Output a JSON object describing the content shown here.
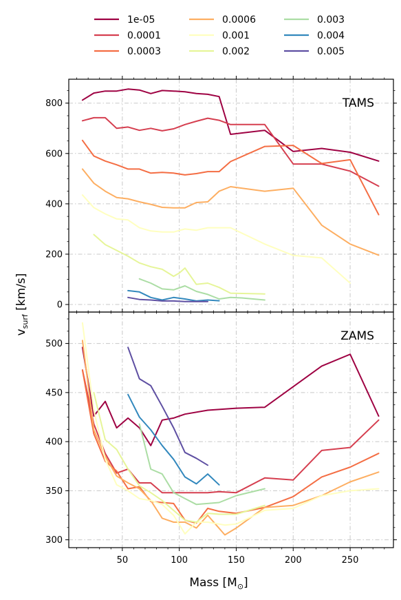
{
  "chart_data": {
    "type": "line",
    "xlabel": "Mass [M",
    "xlabel_sub": "⊙",
    "xlabel_end": "]",
    "ylabel": "v",
    "ylabel_sub": "surf",
    "ylabel_end": " [km/s]",
    "xlim": [
      3,
      288
    ],
    "x_ticks": [
      50,
      100,
      150,
      200,
      250
    ],
    "grid": true,
    "legend_position": "top",
    "series_style": [
      {
        "label": "1e-05",
        "color": "#9e0142"
      },
      {
        "label": "0.0001",
        "color": "#d53e4f"
      },
      {
        "label": "0.0003",
        "color": "#f46d43"
      },
      {
        "label": "0.0006",
        "color": "#fdae61"
      },
      {
        "label": "0.001",
        "color": "#ffffbf"
      },
      {
        "label": "0.002",
        "color": "#e6f598"
      },
      {
        "label": "0.003",
        "color": "#abdda4"
      },
      {
        "label": "0.004",
        "color": "#3288bd"
      },
      {
        "label": "0.005",
        "color": "#5e4fa2"
      }
    ],
    "panels": [
      {
        "label": "TAMS",
        "ylim": [
          -30,
          895
        ],
        "y_ticks": [
          0,
          200,
          400,
          600,
          800
        ],
        "series": [
          {
            "x": [
              15,
              25,
              35,
              45,
              55,
              65,
              75,
              85,
              95,
              105,
              115,
              125,
              135,
              145,
              175,
              200,
              225,
              250,
              275
            ],
            "y": [
              812,
              840,
              848,
              848,
              856,
              852,
              838,
              850,
              848,
              845,
              838,
              835,
              826,
              676,
              692,
              608,
              620,
              605,
              570
            ]
          },
          {
            "x": [
              15,
              25,
              35,
              45,
              55,
              65,
              75,
              85,
              95,
              105,
              115,
              125,
              135,
              145,
              175,
              200,
              225,
              250,
              275
            ],
            "y": [
              730,
              742,
              742,
              700,
              705,
              692,
              700,
              690,
              698,
              715,
              728,
              740,
              732,
              715,
              715,
              558,
              558,
              530,
              470
            ]
          },
          {
            "x": [
              15,
              25,
              35,
              45,
              55,
              65,
              75,
              85,
              95,
              105,
              115,
              125,
              135,
              145,
              175,
              200,
              225,
              250,
              275
            ],
            "y": [
              652,
              590,
              570,
              555,
              538,
              538,
              522,
              525,
              522,
              515,
              520,
              528,
              528,
              568,
              628,
              632,
              560,
              575,
              357
            ]
          },
          {
            "x": [
              15,
              25,
              35,
              45,
              55,
              65,
              75,
              85,
              95,
              105,
              115,
              125,
              135,
              145,
              175,
              200,
              225,
              250,
              275
            ],
            "y": [
              538,
              482,
              450,
              425,
              420,
              408,
              398,
              386,
              384,
              384,
              405,
              408,
              450,
              468,
              450,
              462,
              315,
              240,
              196
            ]
          },
          {
            "x": [
              15,
              25,
              35,
              45,
              55,
              65,
              75,
              85,
              95,
              105,
              115,
              125,
              135,
              145,
              175,
              200,
              225,
              250
            ],
            "y": [
              435,
              385,
              360,
              340,
              336,
              305,
              292,
              288,
              288,
              300,
              295,
              305,
              305,
              305,
              240,
              195,
              185,
              85
            ]
          },
          {
            "x": [
              25,
              35,
              45,
              55,
              65,
              75,
              85,
              95,
              100,
              105,
              115,
              125,
              135,
              145,
              175
            ],
            "y": [
              278,
              238,
              215,
              192,
              165,
              150,
              140,
              112,
              125,
              145,
              80,
              85,
              68,
              45,
              42
            ]
          },
          {
            "x": [
              65,
              75,
              85,
              95,
              105,
              115,
              125,
              135,
              145,
              155,
              175
            ],
            "y": [
              102,
              85,
              62,
              58,
              74,
              52,
              40,
              22,
              28,
              26,
              18
            ]
          },
          {
            "x": [
              55,
              65,
              75,
              85,
              95,
              105,
              115,
              125,
              135
            ],
            "y": [
              55,
              50,
              28,
              18,
              28,
              22,
              14,
              18,
              15
            ]
          },
          {
            "x": [
              55,
              65,
              75,
              85,
              95,
              105,
              115,
              125
            ],
            "y": [
              28,
              20,
              18,
              14,
              14,
              12,
              12,
              12
            ]
          }
        ]
      },
      {
        "label": "ZAMS",
        "ylim": [
          292,
          532
        ],
        "y_ticks": [
          300,
          350,
          400,
          450,
          500
        ],
        "series": [
          {
            "x": [
              15,
              25,
              35,
              45,
              55,
              65,
              75,
              85,
              95,
              105,
              125,
              150,
              175,
              200,
              225,
              250,
              275
            ],
            "y": [
              496,
              426,
              441,
              414,
              424,
              414,
              396,
              422,
              424,
              428,
              432,
              434,
              435,
              456,
              477,
              489,
              426
            ]
          },
          {
            "x": [
              15,
              25,
              35,
              45,
              55,
              65,
              75,
              85,
              95,
              105,
              125,
              135,
              150,
              175,
              200,
              225,
              250,
              275
            ],
            "y": [
              473,
              418,
              388,
              368,
              372,
              358,
              358,
              348,
              348,
              348,
              348,
              349,
              348,
              363,
              361,
              391,
              394,
              422
            ]
          },
          {
            "x": [
              15,
              25,
              35,
              45,
              55,
              65,
              75,
              85,
              95,
              105,
              115,
              125,
              135,
              150,
              175,
              200,
              225,
              250,
              275
            ],
            "y": [
              473,
              408,
              380,
              370,
              352,
              354,
              339,
              338,
              337,
              320,
              317,
              332,
              329,
              327,
              333,
              344,
              364,
              374,
              388
            ]
          },
          {
            "x": [
              15,
              25,
              35,
              45,
              55,
              65,
              75,
              85,
              95,
              105,
              115,
              125,
              140,
              150,
              175,
              200,
              225,
              250,
              275
            ],
            "y": [
              503,
              412,
              385,
              365,
              358,
              352,
              340,
              322,
              318,
              318,
              312,
              325,
              305,
              312,
              333,
              335,
              345,
              359,
              369
            ]
          },
          {
            "x": [
              15,
              25,
              35,
              45,
              55,
              65,
              75,
              85,
              95,
              105,
              115,
              125,
              140,
              150,
              175,
              200,
              225,
              250,
              275
            ],
            "y": [
              521,
              432,
              382,
              356,
              350,
              342,
              340,
              336,
              325,
              306,
              318,
              318,
              315,
              316,
              330,
              332,
              345,
              350,
              352
            ]
          },
          {
            "x": [
              25,
              35,
              45,
              55,
              65,
              75,
              85,
              95,
              105,
              115,
              125,
              135,
              150,
              175
            ],
            "y": [
              450,
              402,
              392,
              372,
              355,
              348,
              340,
              330,
              320,
              318,
              327,
              326,
              326,
              335
            ]
          },
          {
            "x": [
              65,
              75,
              85,
              95,
              105,
              115,
              125,
              135,
              150,
              175
            ],
            "y": [
              418,
              372,
              367,
              348,
              342,
              336,
              337,
              338,
              345,
              352
            ]
          },
          {
            "x": [
              55,
              65,
              75,
              85,
              95,
              105,
              115,
              125,
              135
            ],
            "y": [
              448,
              425,
              412,
              396,
              382,
              364,
              357,
              367,
              356
            ]
          },
          {
            "x": [
              55,
              65,
              75,
              85,
              95,
              105,
              115,
              125
            ],
            "y": [
              496,
              464,
              457,
              436,
              414,
              389,
              383,
              376
            ]
          }
        ]
      }
    ]
  }
}
